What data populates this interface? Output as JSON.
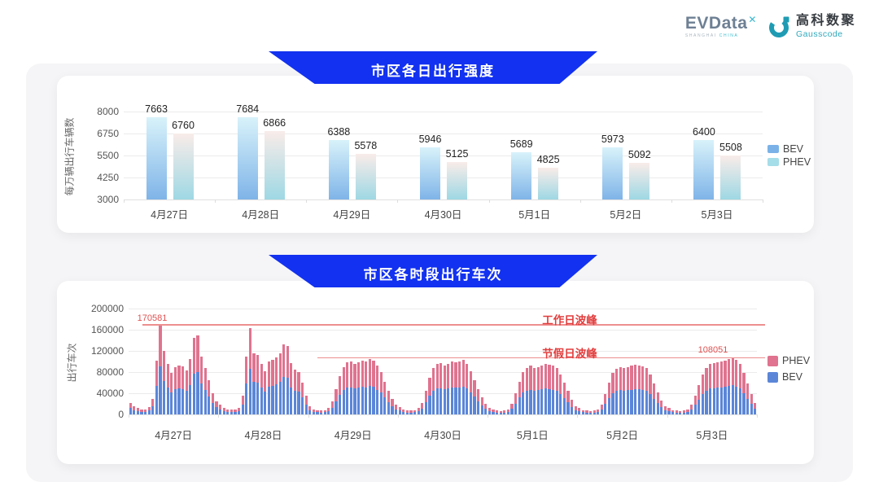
{
  "logo": {
    "evdata_text": "EVData",
    "evdata_sup": "✕",
    "evdata_sub_left": "SHANGHAI ",
    "evdata_sub_right": "CHINA",
    "gausscode_cn": "高科数聚",
    "gausscode_en": "Gausscode"
  },
  "colors": {
    "banner_blue": "#1231f0",
    "bev_grad_top": "#d8f2fa",
    "bev_grad_bottom": "#7fb4e8",
    "phev_grad_top": "#f9ece9",
    "phev_grad_bottom": "#9ed8e4",
    "legend_bev": "#7ab2e8",
    "legend_phev": "#a5dde8",
    "stack_bev": "#5b86d8",
    "stack_phev": "#e0738f",
    "annotation_red": "#e23d3d",
    "annotation_value_red": "#e05252",
    "peak_line_red": "#ee8f8f",
    "grid": "#ebebeb",
    "axis_line": "#e0e0e0"
  },
  "chart_data": [
    {
      "type": "bar",
      "title": "市区各日出行强度",
      "ylabel": "每万辆出行车辆数",
      "categories": [
        "4月27日",
        "4月28日",
        "4月29日",
        "4月30日",
        "5月1日",
        "5月2日",
        "5月3日"
      ],
      "series": [
        {
          "name": "BEV",
          "values": [
            7663,
            7684,
            6388,
            5946,
            5689,
            5973,
            6400
          ]
        },
        {
          "name": "PHEV",
          "values": [
            6760,
            6866,
            5578,
            5125,
            4825,
            5092,
            5508
          ]
        }
      ],
      "yticks": [
        3000,
        4250,
        5500,
        6750,
        8000
      ],
      "ylim": [
        3000,
        8000
      ],
      "grid": true,
      "legend": [
        "BEV",
        "PHEV"
      ],
      "legend_position": "right"
    },
    {
      "type": "bar",
      "stacked": true,
      "title": "市区各时段出行车次",
      "ylabel": "出行车次",
      "x_unit": "hour-of-day (24 bars per date)",
      "categories": [
        "4月27日",
        "4月28日",
        "4月29日",
        "4月30日",
        "5月1日",
        "5月2日",
        "5月3日"
      ],
      "yticks": [
        0,
        40000,
        80000,
        120000,
        160000,
        200000
      ],
      "ylim": [
        0,
        200000
      ],
      "grid": true,
      "legend": [
        "PHEV",
        "BEV"
      ],
      "legend_position": "right",
      "annotations": {
        "workday_peak": {
          "label": "工作日波峰",
          "value": 170581,
          "value_label": "170581"
        },
        "holiday_peak": {
          "label": "节假日波峰",
          "value": 108051,
          "value_label": "108051"
        }
      },
      "days": [
        {
          "label": "4月27日",
          "bev": [
            11700,
            8000,
            6400,
            5300,
            4800,
            7400,
            15900,
            54100,
            90581,
            63600,
            50400,
            41300,
            47700,
            49300,
            48200,
            44000,
            55700,
            76900,
            79500,
            58300,
            46600,
            34500,
            21200,
            13300
          ],
          "phev": [
            10300,
            7000,
            5600,
            4700,
            4200,
            6600,
            14100,
            47900,
            80000,
            56400,
            44600,
            36700,
            42300,
            43700,
            42800,
            39000,
            49300,
            68100,
            70500,
            51700,
            41400,
            30500,
            18800,
            11700
          ]
        },
        {
          "label": "4月28日",
          "bev": [
            9500,
            6400,
            5300,
            4800,
            4800,
            6900,
            18600,
            58300,
            86400,
            61000,
            59900,
            50400,
            43500,
            53000,
            54600,
            56700,
            61000,
            70500,
            68900,
            51400,
            45100,
            42400,
            31800,
            18600
          ],
          "phev": [
            8500,
            5600,
            4700,
            4200,
            4200,
            6100,
            16400,
            51700,
            76600,
            54000,
            53100,
            44600,
            38500,
            47000,
            48400,
            50300,
            54000,
            62500,
            61100,
            45600,
            39900,
            37600,
            28200,
            16400
          ]
        },
        {
          "label": "4月29日",
          "bev": [
            7700,
            5100,
            4100,
            3600,
            4100,
            6100,
            12800,
            24500,
            36700,
            45900,
            50000,
            51000,
            49000,
            50000,
            52000,
            51000,
            53600,
            52000,
            46900,
            40800,
            31600,
            23000,
            15300,
            9200
          ],
          "phev": [
            7300,
            4900,
            3900,
            3400,
            3900,
            5900,
            12200,
            23500,
            35300,
            44100,
            48000,
            49000,
            47000,
            48000,
            50000,
            49000,
            51400,
            50000,
            45100,
            39200,
            30400,
            22000,
            14700,
            8800
          ]
        },
        {
          "label": "4月30日",
          "bev": [
            7100,
            4600,
            3600,
            3600,
            4100,
            6100,
            11200,
            23000,
            35700,
            44900,
            48500,
            49500,
            47400,
            48500,
            51000,
            50000,
            51000,
            52500,
            48500,
            41800,
            33200,
            24500,
            16300,
            10200
          ],
          "phev": [
            6900,
            4400,
            3400,
            3400,
            3900,
            5900,
            10800,
            22000,
            34300,
            43100,
            46500,
            47500,
            45600,
            46500,
            49000,
            48000,
            49000,
            50500,
            46500,
            40200,
            31800,
            23500,
            15700,
            9800
          ]
        },
        {
          "label": "5月1日",
          "bev": [
            6600,
            4600,
            3600,
            3100,
            3600,
            5100,
            10200,
            20400,
            31600,
            40800,
            44900,
            46900,
            44900,
            45900,
            47400,
            48500,
            47900,
            46900,
            44900,
            38800,
            30600,
            22400,
            14300,
            8200
          ],
          "phev": [
            6400,
            4400,
            3400,
            2900,
            3400,
            4900,
            9800,
            19600,
            30400,
            39200,
            43100,
            45100,
            43100,
            44100,
            45600,
            46500,
            46100,
            45100,
            43100,
            37200,
            29400,
            21600,
            13700,
            7800
          ]
        },
        {
          "label": "5月2日",
          "bev": [
            6100,
            4100,
            3600,
            3100,
            3600,
            5100,
            9700,
            19400,
            30600,
            39800,
            43900,
            45900,
            44900,
            45900,
            46900,
            47900,
            47400,
            46400,
            44400,
            38300,
            29600,
            21400,
            13300,
            7700
          ],
          "phev": [
            5900,
            3900,
            3400,
            2900,
            3400,
            4900,
            9300,
            18600,
            29400,
            38200,
            42100,
            44100,
            43100,
            44100,
            45100,
            46100,
            45600,
            44600,
            42600,
            36700,
            28400,
            20600,
            12700,
            7300
          ]
        },
        {
          "label": "5月3日",
          "bev": [
            6100,
            4100,
            3600,
            3100,
            3600,
            5100,
            9200,
            17900,
            28100,
            38300,
            44900,
            48500,
            49500,
            50500,
            51000,
            52000,
            53600,
            55051,
            52500,
            48500,
            39800,
            29600,
            19400,
            11200
          ],
          "phev": [
            5900,
            3900,
            3400,
            2900,
            3400,
            4900,
            8800,
            17100,
            26900,
            36700,
            43100,
            46500,
            47500,
            48500,
            49000,
            50000,
            51400,
            53000,
            50500,
            46500,
            38200,
            28400,
            18600,
            10800
          ]
        }
      ]
    }
  ]
}
